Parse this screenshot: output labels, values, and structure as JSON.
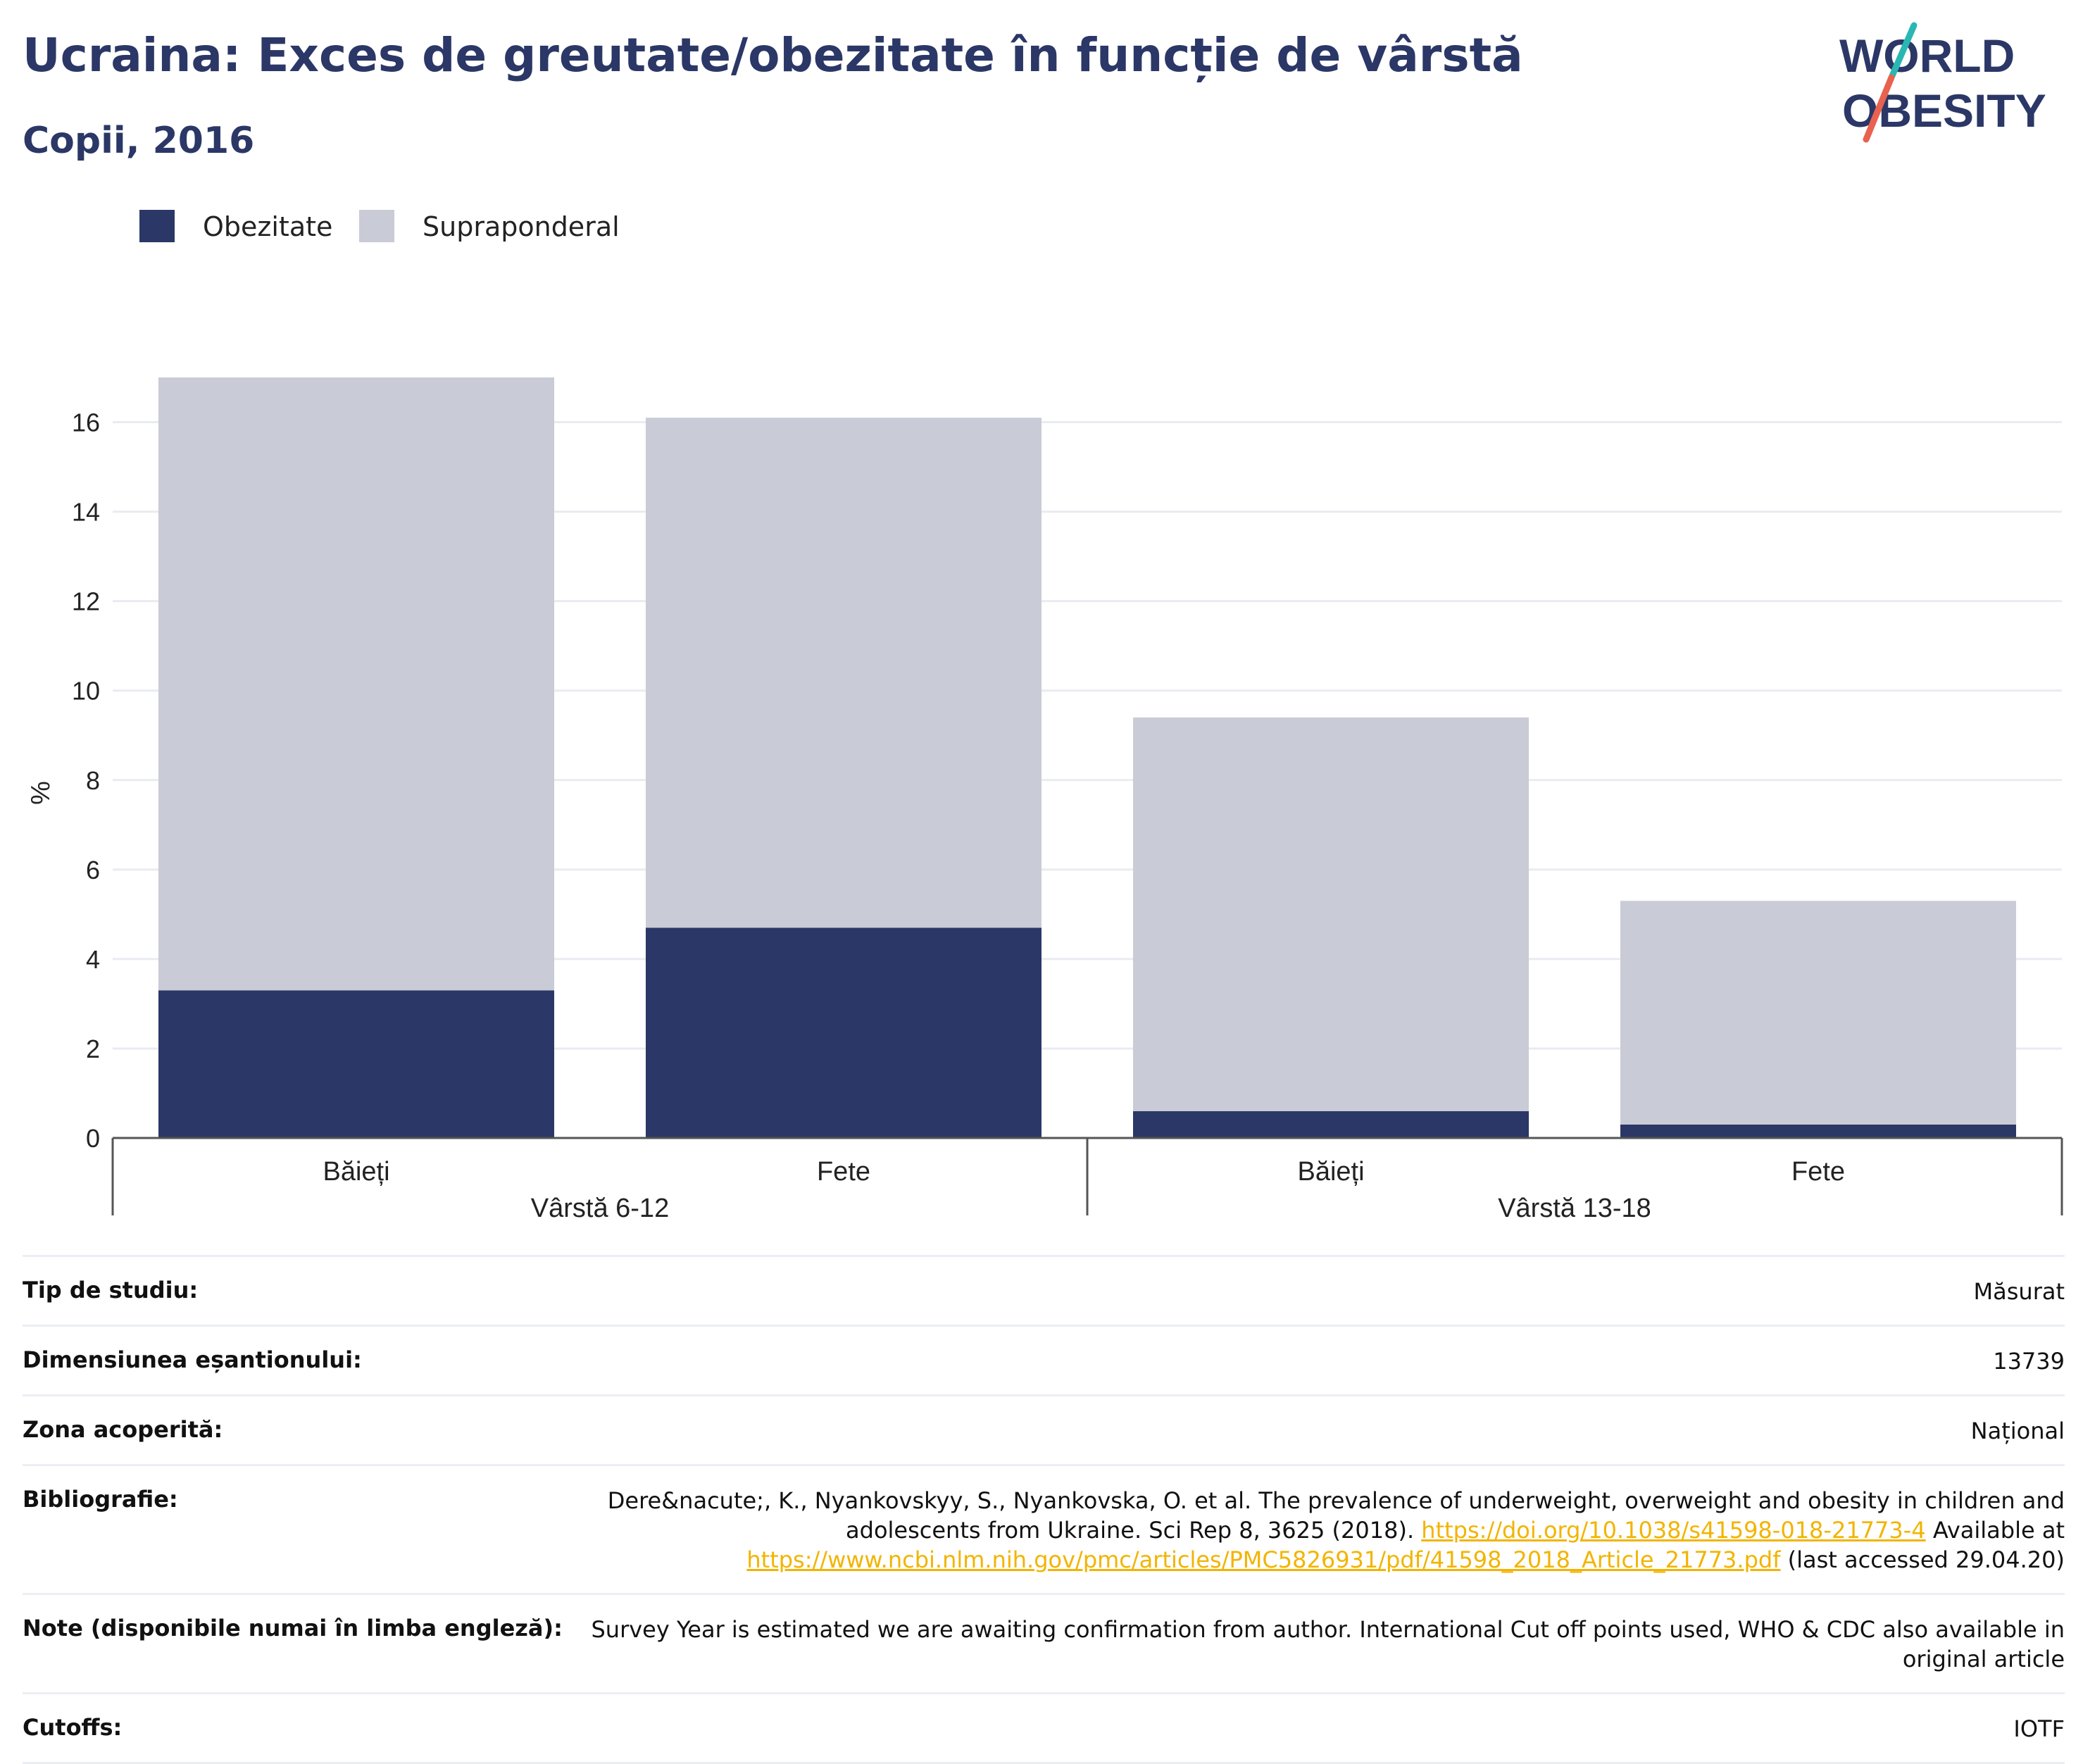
{
  "header": {
    "title": "Ucraina: Exces de greutate/obezitate în funcție de vârstă",
    "subtitle": "Copii, 2016"
  },
  "logo": {
    "line1": "WORLD",
    "line2": "OBESITY",
    "slash_colors": [
      "#2ab7b4",
      "#e8624f"
    ]
  },
  "legend": [
    {
      "label": "Obezitate",
      "color": "#2b3766"
    },
    {
      "label": "Supraponderal",
      "color": "#c9cbd6"
    }
  ],
  "chart_data": {
    "type": "bar",
    "stacked": true,
    "ylabel": "%",
    "ylim": [
      0,
      17
    ],
    "yticks": [
      0,
      2,
      4,
      6,
      8,
      10,
      12,
      14,
      16
    ],
    "grid": true,
    "legend_position": "top-left",
    "categories": [
      "Băieți",
      "Fete",
      "Băieți",
      "Fete"
    ],
    "groups": [
      {
        "label": "Vârstă 6-12",
        "categories": [
          0,
          1
        ]
      },
      {
        "label": "Vârstă 13-18",
        "categories": [
          2,
          3
        ]
      }
    ],
    "series": [
      {
        "name": "Obezitate",
        "color": "#2b3766",
        "values": [
          3.3,
          4.7,
          0.6,
          0.3
        ]
      },
      {
        "name": "Supraponderal",
        "color": "#c9cbd6",
        "values": [
          13.7,
          11.4,
          8.8,
          5.0
        ]
      }
    ]
  },
  "meta": [
    {
      "label": "Tip de studiu:",
      "value": "Măsurat"
    },
    {
      "label": "Dimensiunea eșantionului:",
      "value": "13739"
    },
    {
      "label": "Zona acoperită:",
      "value": "Național"
    },
    {
      "label": "Bibliografie:",
      "text1": "Dere&nacute;, K., Nyankovskyy, S., Nyankovska, O. et al. The prevalence of underweight, overweight and obesity in children and adolescents from Ukraine. Sci Rep 8, 3625 (2018). ",
      "link1": "https://doi.org/10.1038/s41598-018-21773-4",
      "text2": " Available at ",
      "link2": "https://www.ncbi.nlm.nih.gov/pmc/articles/PMC5826931/pdf/41598_2018_Article_21773.pdf",
      "text3": " (last accessed 29.04.20)"
    },
    {
      "label": "Note (disponibile numai în limba engleză):",
      "value": "Survey Year is estimated we are awaiting confirmation from author. International Cut off points used, WHO & CDC also available in original article"
    },
    {
      "label": "Cutoffs:",
      "value": "IOTF"
    }
  ]
}
